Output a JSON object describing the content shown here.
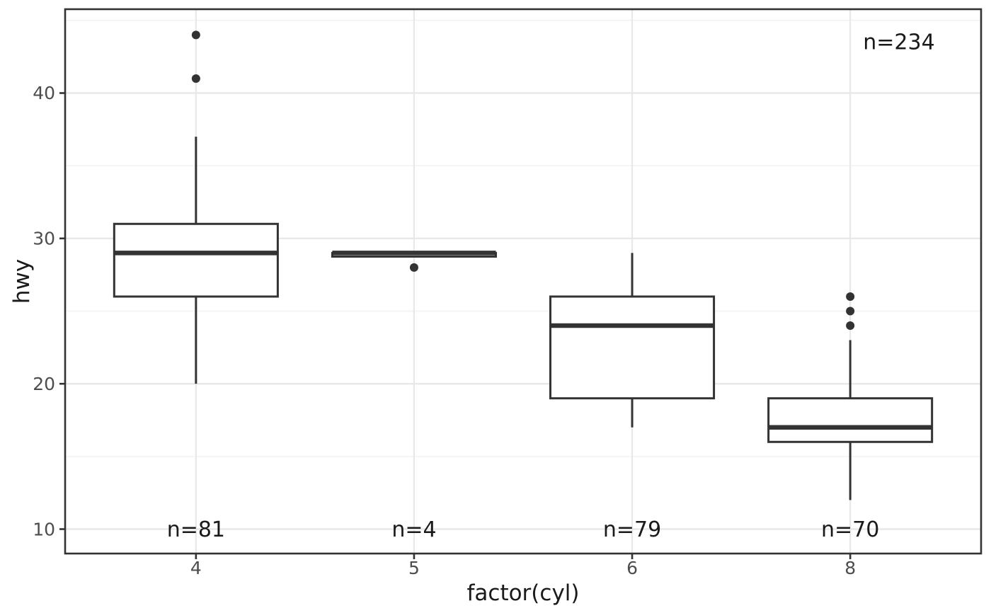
{
  "chart_data": {
    "type": "boxplot",
    "title": "",
    "xlabel": "factor(cyl)",
    "ylabel": "hwy",
    "categories": [
      "4",
      "5",
      "6",
      "8"
    ],
    "ylim": [
      8.32,
      45.77
    ],
    "y_axis": {
      "major_ticks": [
        10,
        20,
        30,
        40
      ],
      "major_tick_labels": [
        "10",
        "20",
        "30",
        "40"
      ],
      "minor_ticks": [
        15,
        25,
        35,
        45
      ]
    },
    "x_axis": {
      "tick_labels": [
        "4",
        "5",
        "6",
        "8"
      ]
    },
    "grid": "on",
    "legend": "none",
    "boxes": [
      {
        "category": "4",
        "lower_whisker": 20,
        "q1": 26,
        "median": 29,
        "q3": 31,
        "upper_whisker": 37,
        "outliers": [
          41,
          44
        ],
        "count_label": "n=81"
      },
      {
        "category": "5",
        "lower_whisker": 28.75,
        "q1": 28.75,
        "median": 29,
        "q3": 29,
        "upper_whisker": 29,
        "outliers": [
          28
        ],
        "count_label": "n=4"
      },
      {
        "category": "6",
        "lower_whisker": 17,
        "q1": 19,
        "median": 24,
        "q3": 26,
        "upper_whisker": 29,
        "outliers": [],
        "count_label": "n=79"
      },
      {
        "category": "8",
        "lower_whisker": 12,
        "q1": 16,
        "median": 17,
        "q3": 19,
        "upper_whisker": 23,
        "outliers": [
          24,
          25,
          26
        ],
        "count_label": "n=70"
      }
    ],
    "count_label_y": 10,
    "annotation": {
      "total_label": "n=234"
    },
    "colors": {
      "box_stroke": "#333333",
      "box_fill": "#ffffff",
      "outlier_fill": "#333333",
      "grid_major": "#e8e8e8",
      "grid_minor": "#f2f2f2",
      "panel_border": "#333333",
      "panel_background": "#ffffff",
      "tick_mark": "#333333",
      "tick_label_color": "#4d4d4d",
      "text_color": "#1a1a1a",
      "background": "#ffffff"
    }
  }
}
